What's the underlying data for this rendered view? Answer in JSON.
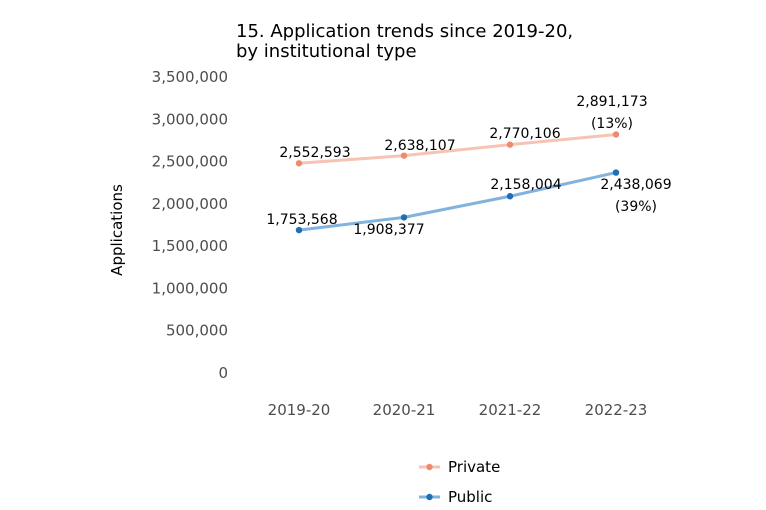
{
  "chart_data": {
    "type": "line",
    "title_line1": "15. Application trends since 2019-20,",
    "title_line2": "by institutional type",
    "xlabel": "",
    "ylabel": "Applications",
    "categories": [
      "2019-20",
      "2020-21",
      "2021-22",
      "2022-23"
    ],
    "ylim": [
      0,
      3500000
    ],
    "yticks": [
      "3,500,000",
      "3,000,000",
      "2,500,000",
      "2,000,000",
      "1,500,000",
      "1,000,000",
      "500,000",
      "0"
    ],
    "ytick_values": [
      3500000,
      3000000,
      2500000,
      2000000,
      1500000,
      1000000,
      500000,
      0
    ],
    "grid": false,
    "legend_position": "bottom",
    "series": [
      {
        "name": "Private",
        "color": "#F08A6E",
        "line_color": "#F6C3B4",
        "values": [
          2480000,
          2570000,
          2700000,
          2820000
        ],
        "labels": [
          "2,552,593",
          "2,638,107",
          "2,770,106",
          "2,891,173"
        ],
        "final_pct": "(13%)"
      },
      {
        "name": "Public",
        "color": "#1F6FB4",
        "line_color": "#82B3DE",
        "values": [
          1690000,
          1840000,
          2090000,
          2370000
        ],
        "labels": [
          "1,753,568",
          "1,908,377",
          "2,158,004",
          "2,438,069"
        ],
        "final_pct": "(39%)"
      }
    ]
  }
}
